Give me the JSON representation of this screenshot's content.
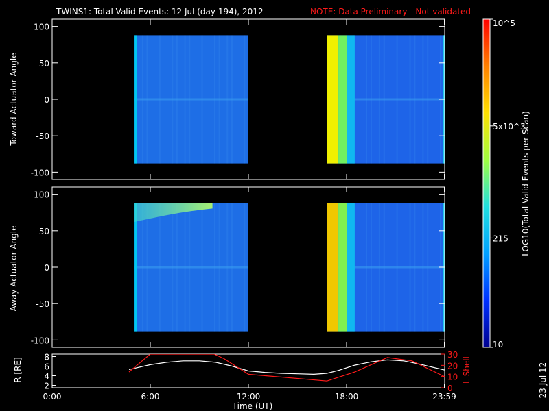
{
  "title": {
    "main": "TWINS1: Total Valid Events: 12 Jul (day 194), 2012",
    "note": "NOTE: Data Preliminary - Not validated"
  },
  "colorbar": {
    "label": "LOG10(Total Valid Events per Scan)",
    "ticks": [
      {
        "value": 10,
        "text": "10"
      },
      {
        "value": 215,
        "text": "215"
      },
      {
        "value": 5000,
        "text": "5x10^3"
      },
      {
        "value": 100000,
        "text": "10^5"
      }
    ],
    "scale": "log",
    "range": [
      10,
      100000
    ],
    "colormap": [
      "#000090",
      "#0030ff",
      "#00a0ff",
      "#20e0e0",
      "#a0ff40",
      "#ffe000",
      "#ff8000",
      "#ff0000"
    ]
  },
  "footer": {
    "xlabel": "Time (UT)",
    "date_stamp": "23 Jul 12"
  },
  "chart_data": [
    {
      "type": "heatmap",
      "panel": "toward",
      "ylabel": "Toward Actuator Angle",
      "xlim": [
        0,
        24
      ],
      "ylim": [
        -110,
        110
      ],
      "yticks": [
        -100,
        -50,
        0,
        50,
        100
      ],
      "data_blocks": [
        {
          "x_start": 5.0,
          "x_end": 12.0,
          "y_start": -88,
          "y_end": 88,
          "base_color": "#1e6ee6",
          "edge_color": "#00c8f0",
          "edge_width_hours": 0.2
        },
        {
          "x_start": 16.8,
          "x_end": 24.0,
          "y_start": -88,
          "y_end": 88,
          "base_color": "#1e64e8",
          "bands": [
            {
              "x_start": 16.8,
              "x_end": 17.5,
              "color": "#f0f000"
            },
            {
              "x_start": 17.5,
              "x_end": 18.0,
              "color": "#70f060"
            },
            {
              "x_start": 18.0,
              "x_end": 18.5,
              "color": "#10b8f0"
            }
          ]
        }
      ]
    },
    {
      "type": "heatmap",
      "panel": "away",
      "ylabel": "Away Actuator Angle",
      "xlim": [
        0,
        24
      ],
      "ylim": [
        -110,
        110
      ],
      "yticks": [
        -100,
        -50,
        0,
        50,
        100
      ],
      "data_blocks": [
        {
          "x_start": 5.0,
          "x_end": 12.0,
          "y_start": -88,
          "y_end": 88,
          "base_color": "#1e6ee6",
          "edge_color": "#00c8f0",
          "edge_width_hours": 0.2,
          "hot_region": {
            "x_start": 5.0,
            "x_end": 9.8,
            "y_start": 62,
            "y_end": 88,
            "color": "#40d8d0",
            "peak_color": "#a8f070"
          }
        },
        {
          "x_start": 16.8,
          "x_end": 24.0,
          "y_start": -88,
          "y_end": 88,
          "base_color": "#1e64e8",
          "bands": [
            {
              "x_start": 16.8,
              "x_end": 17.5,
              "color": "#f0c800"
            },
            {
              "x_start": 17.5,
              "x_end": 18.0,
              "color": "#80f050"
            },
            {
              "x_start": 18.0,
              "x_end": 18.5,
              "color": "#10b8f0"
            }
          ]
        }
      ]
    },
    {
      "type": "line",
      "panel": "orbit",
      "ylabel": "R [RE]",
      "y2label": "L Shell",
      "xlim": [
        0,
        24
      ],
      "ylim": [
        1.5,
        8.5
      ],
      "y2lim": [
        0,
        30
      ],
      "yticks": [
        2,
        4,
        6,
        8
      ],
      "y2ticks": [
        0,
        10,
        20,
        30
      ],
      "xticks": [
        {
          "value": 0,
          "text": "0:00"
        },
        {
          "value": 6,
          "text": "6:00"
        },
        {
          "value": 12,
          "text": "12:00"
        },
        {
          "value": 18,
          "text": "18:00"
        },
        {
          "value": 23.98,
          "text": "23:59"
        }
      ],
      "series": [
        {
          "name": "R [RE]",
          "axis": "left",
          "color": "#ffffff",
          "x": [
            4.7,
            6,
            7,
            8,
            9,
            10,
            11,
            12,
            13,
            14,
            15,
            16,
            16.8,
            17.5,
            18.5,
            19.5,
            20.5,
            21.5,
            22.5,
            23.98
          ],
          "y": [
            5.3,
            6.3,
            6.8,
            7.1,
            7.1,
            6.8,
            6.0,
            5.0,
            4.7,
            4.5,
            4.4,
            4.3,
            4.5,
            5.1,
            6.2,
            6.9,
            7.3,
            7.1,
            6.4,
            5.2
          ]
        },
        {
          "name": "L Shell",
          "axis": "right",
          "color": "#ff1a1a",
          "x": [
            4.7,
            5.5,
            6.0,
            9.9,
            10.5,
            12.0,
            16.8,
            18.5,
            20.5,
            22.0,
            23.98
          ],
          "y": [
            14,
            24,
            30,
            30,
            26,
            12,
            6,
            14,
            27,
            24,
            10
          ]
        }
      ]
    }
  ]
}
